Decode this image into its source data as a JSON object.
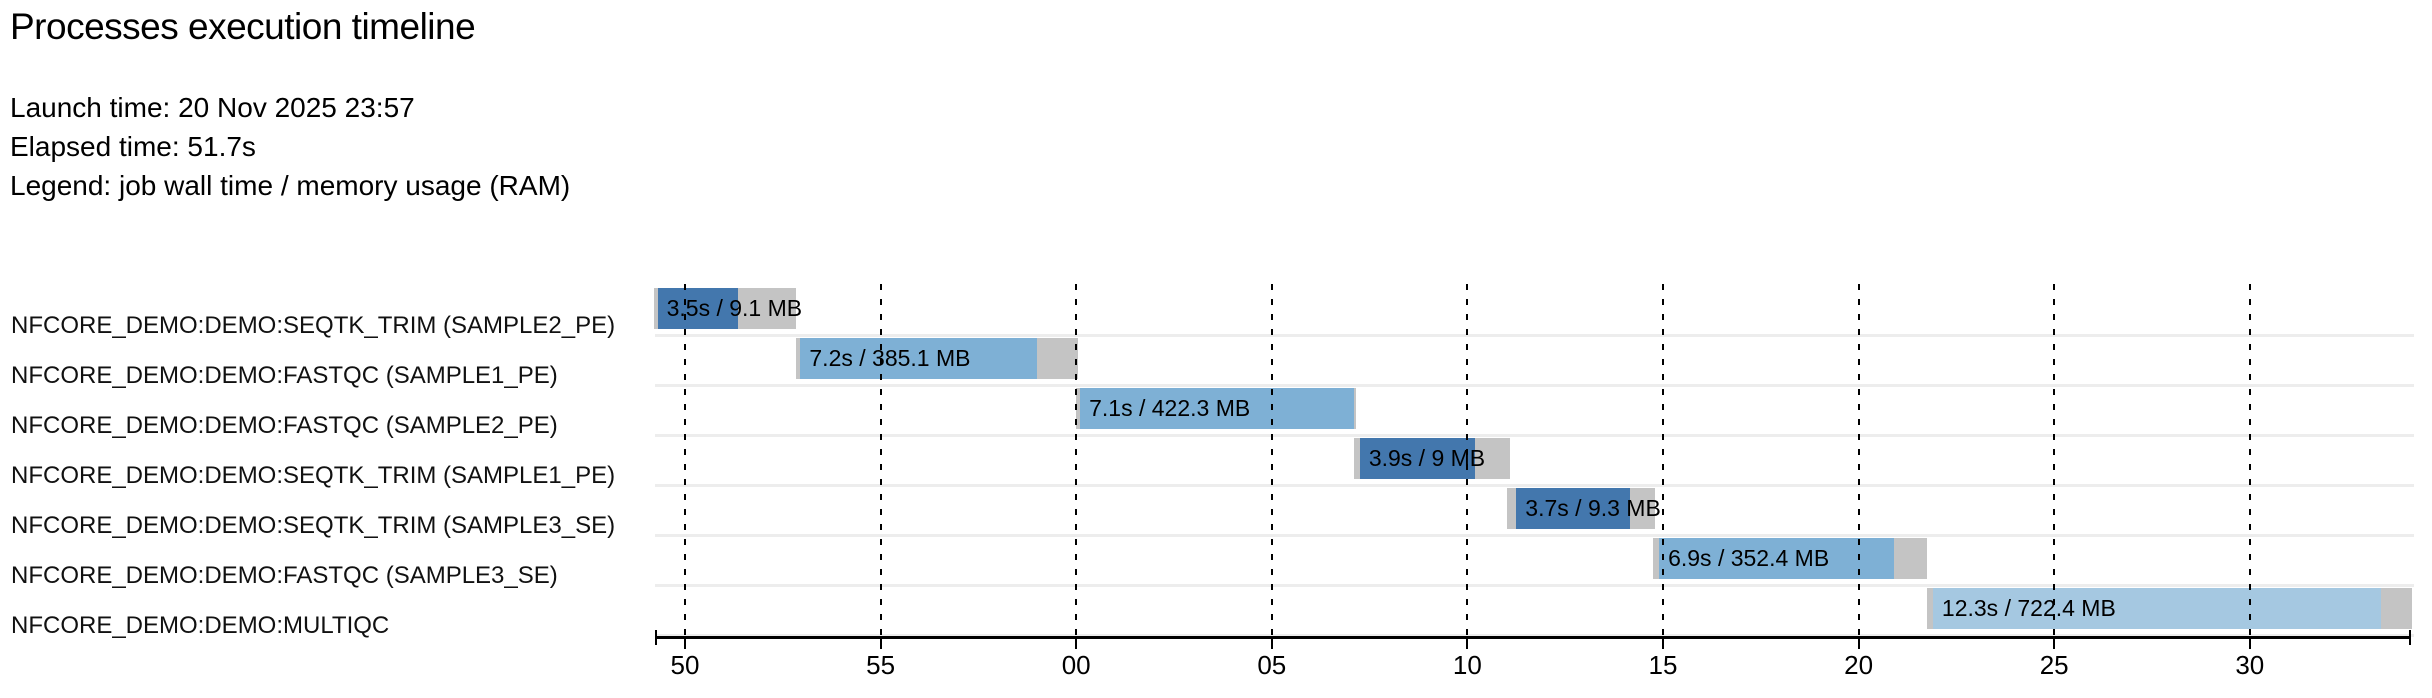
{
  "page": {
    "title": "Processes execution timeline",
    "meta": [
      "Launch time: 20 Nov 2025 23:57",
      "Elapsed time: 51.7s",
      "Legend: job wall time / memory usage (RAM)"
    ]
  },
  "colors": {
    "seqtk_trim": "#4377AD",
    "fastqc": "#7EB0D5",
    "multiqc": "#A5C8E1",
    "bar_tail_gray": "#C4C4C4",
    "row_separator": "#EDEDED",
    "axis": "#000000"
  },
  "chart_data": {
    "type": "gantt-timeline",
    "title": "Processes execution timeline",
    "launch_time": "20 Nov 2025 23:57",
    "elapsed_time": "51.7s",
    "legend_note": "job wall time / memory usage (RAM)",
    "x_axis": {
      "unit": "seconds (clock, wraps at minute 23:57 → 23:58)",
      "ticks": [
        {
          "t": 50,
          "label": "50"
        },
        {
          "t": 55,
          "label": "55"
        },
        {
          "t": 60,
          "label": "00"
        },
        {
          "t": 65,
          "label": "05"
        },
        {
          "t": 70,
          "label": "10"
        },
        {
          "t": 75,
          "label": "15"
        },
        {
          "t": 80,
          "label": "20"
        },
        {
          "t": 85,
          "label": "25"
        },
        {
          "t": 90,
          "label": "30"
        }
      ]
    },
    "tasks": [
      {
        "label": "NFCORE_DEMO:DEMO:SEQTK_TRIM (SAMPLE2_PE)",
        "bar_label": "3.5s / 9.1 MB",
        "wall_time": "3.5s",
        "memory": "9.1 MB",
        "color_key": "seqtk_trim",
        "submit_s": 49.2,
        "complete_s": 52.85,
        "run_start_s": 49.3,
        "run_end_s": 51.35
      },
      {
        "label": "NFCORE_DEMO:DEMO:FASTQC (SAMPLE1_PE)",
        "bar_label": "7.2s / 385.1 MB",
        "wall_time": "7.2s",
        "memory": "385.1 MB",
        "color_key": "fastqc",
        "submit_s": 52.85,
        "complete_s": 60.05,
        "run_start_s": 52.95,
        "run_end_s": 59.0
      },
      {
        "label": "NFCORE_DEMO:DEMO:FASTQC (SAMPLE2_PE)",
        "bar_label": "7.1s / 422.3 MB",
        "wall_time": "7.1s",
        "memory": "422.3 MB",
        "color_key": "fastqc",
        "submit_s": 60.0,
        "complete_s": 67.15,
        "run_start_s": 60.1,
        "run_end_s": 67.1
      },
      {
        "label": "NFCORE_DEMO:DEMO:SEQTK_TRIM (SAMPLE1_PE)",
        "bar_label": "3.9s / 9 MB",
        "wall_time": "3.9s",
        "memory": "9 MB",
        "color_key": "seqtk_trim",
        "submit_s": 67.1,
        "complete_s": 71.1,
        "run_start_s": 67.25,
        "run_end_s": 70.2
      },
      {
        "label": "NFCORE_DEMO:DEMO:SEQTK_TRIM (SAMPLE3_SE)",
        "bar_label": "3.7s / 9.3 MB",
        "wall_time": "3.7s",
        "memory": "9.3 MB",
        "color_key": "seqtk_trim",
        "submit_s": 71.0,
        "complete_s": 74.8,
        "run_start_s": 71.25,
        "run_end_s": 74.15
      },
      {
        "label": "NFCORE_DEMO:DEMO:FASTQC (SAMPLE3_SE)",
        "bar_label": "6.9s / 352.4 MB",
        "wall_time": "6.9s",
        "memory": "352.4 MB",
        "color_key": "fastqc",
        "submit_s": 74.75,
        "complete_s": 81.75,
        "run_start_s": 74.9,
        "run_end_s": 80.9
      },
      {
        "label": "NFCORE_DEMO:DEMO:MULTIQC",
        "bar_label": "12.3s / 722.4 MB",
        "wall_time": "12.3s",
        "memory": "722.4 MB",
        "color_key": "multiqc",
        "submit_s": 81.75,
        "complete_s": 94.15,
        "run_start_s": 81.9,
        "run_end_s": 93.35
      }
    ]
  }
}
